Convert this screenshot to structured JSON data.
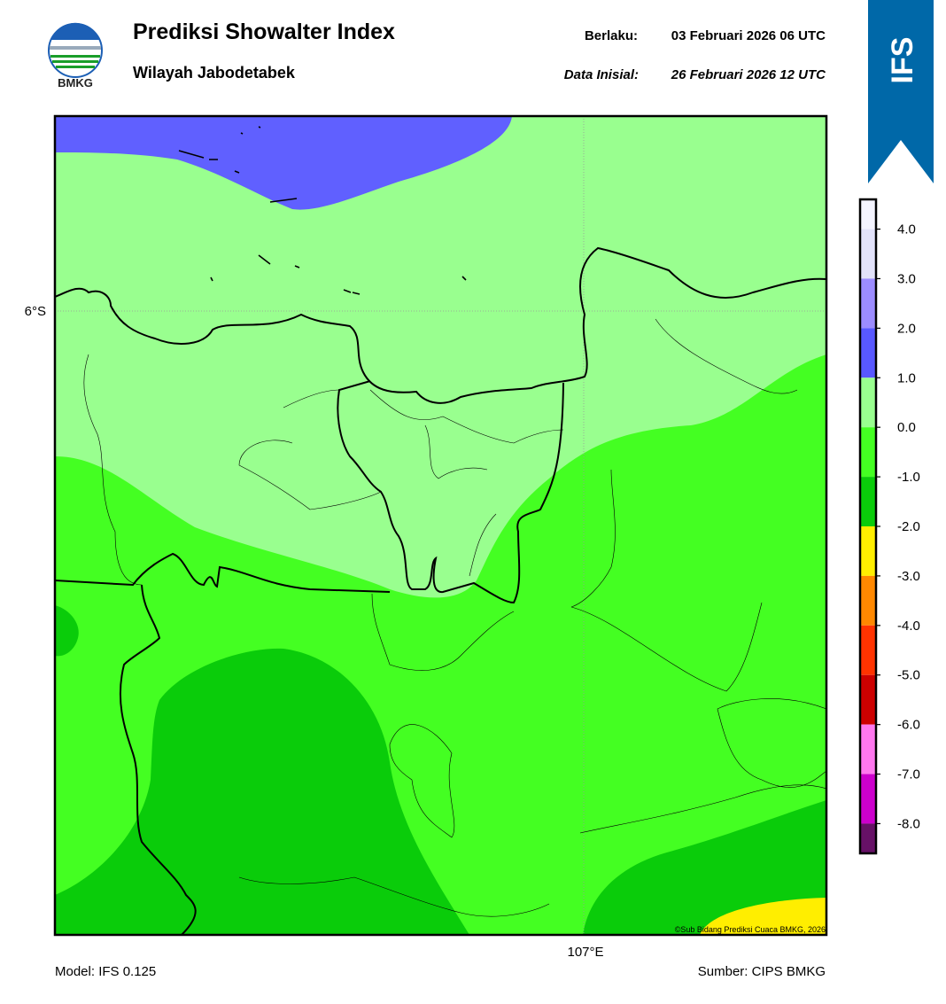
{
  "logo": {
    "text": "BMKG"
  },
  "header": {
    "title": "Prediksi Showalter Index",
    "subtitle": "Wilayah Jabodetabek",
    "valid_label": "Berlaku:",
    "valid": "03 Februari 2026 06 UTC",
    "init_label": "Data Inisial:",
    "init": "26 Februari 2026 12 UTC"
  },
  "badge": "IFS",
  "map": {
    "lat_label": "6°S",
    "lon_label": "107°E",
    "credit": "©Sub Bidang Prediksi Cuaca BMKG, 2026"
  },
  "colorbar": {
    "lim": [
      -8.6,
      4.6
    ],
    "ticks": [
      {
        "value": 4,
        "label": "4.0"
      },
      {
        "value": 3,
        "label": "3.0"
      },
      {
        "value": 2,
        "label": "2.0"
      },
      {
        "value": 1,
        "label": "1.0"
      },
      {
        "value": 0,
        "label": "0.0"
      },
      {
        "value": -1,
        "label": "-1.0"
      },
      {
        "value": -2,
        "label": "-2.0"
      },
      {
        "value": -3,
        "label": "-3.0"
      },
      {
        "value": -4,
        "label": "-4.0"
      },
      {
        "value": -5,
        "label": "-5.0"
      },
      {
        "value": -6,
        "label": "-6.0"
      },
      {
        "value": -7,
        "label": "-7.0"
      },
      {
        "value": -8,
        "label": "-8.0"
      }
    ],
    "colors": [
      "#f4f4ff",
      "#e2e2fa",
      "#9c8cff",
      "#5858ff",
      "#99ff8f",
      "#44ff22",
      "#0acc0a",
      "#ffee00",
      "#ff8800",
      "#ff3300",
      "#cc0000",
      "#ff77ee",
      "#cc00cc",
      "#661166"
    ]
  },
  "footer": {
    "model": "Model: IFS 0.125",
    "source": "Sumber: CIPS BMKG"
  }
}
